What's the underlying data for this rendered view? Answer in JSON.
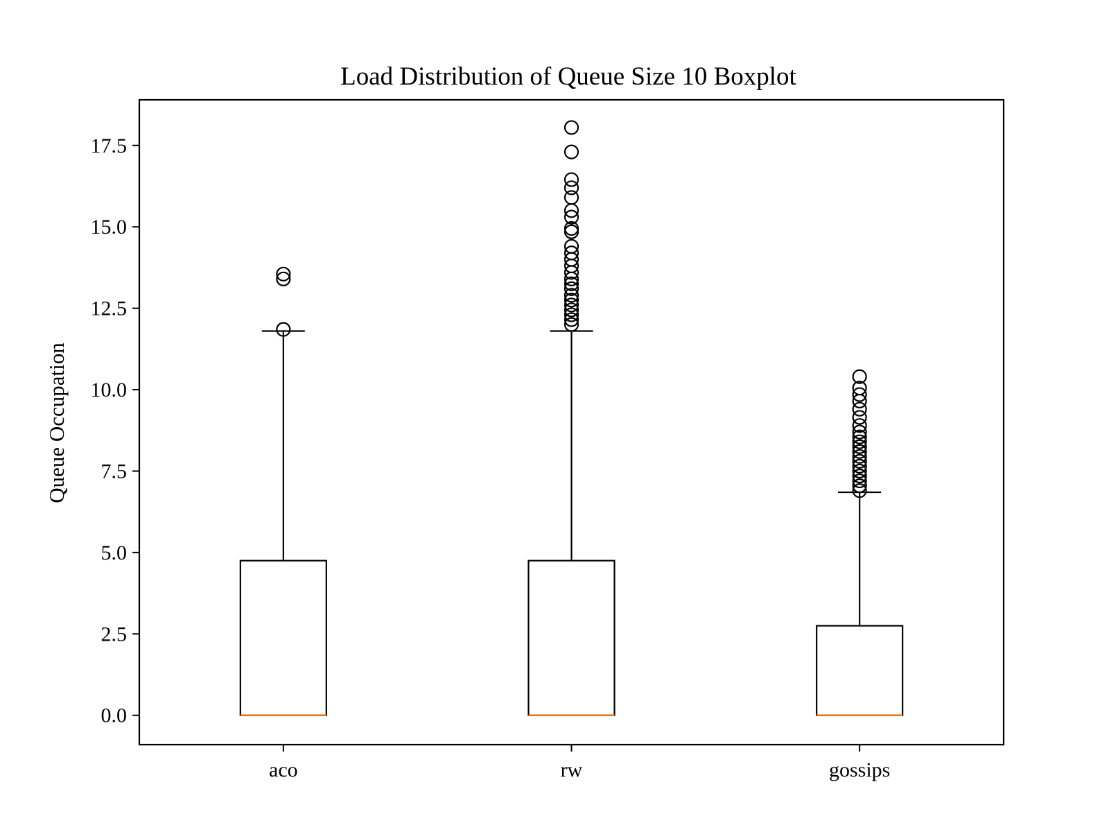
{
  "chart_data": {
    "type": "box",
    "title": "Load Distribution of Queue Size 10 Boxplot",
    "xlabel": "",
    "ylabel": "Queue Occupation",
    "ylim": [
      -0.9,
      18.9
    ],
    "yticks": [
      "0.0",
      "2.5",
      "5.0",
      "7.5",
      "10.0",
      "12.5",
      "15.0",
      "17.5"
    ],
    "grid": false,
    "colors": {
      "box": "#000000",
      "median": "#e07b1f",
      "background": "#ffffff"
    },
    "categories": [
      "aco",
      "rw",
      "gossips"
    ],
    "series": [
      {
        "category": "aco",
        "min": 0.0,
        "q1": 0.0,
        "median": 0.0,
        "q3": 4.75,
        "whisker_high": 11.8,
        "outliers": [
          11.85,
          13.4,
          13.55
        ]
      },
      {
        "category": "rw",
        "min": 0.0,
        "q1": 0.0,
        "median": 0.0,
        "q3": 4.75,
        "whisker_high": 11.8,
        "outliers": [
          12.0,
          12.15,
          12.3,
          12.45,
          12.6,
          12.75,
          12.9,
          13.1,
          13.25,
          13.4,
          13.6,
          13.8,
          14.0,
          14.2,
          14.4,
          14.85,
          14.95,
          15.3,
          15.5,
          15.9,
          16.2,
          16.45,
          17.3,
          18.05
        ]
      },
      {
        "category": "gossips",
        "min": 0.0,
        "q1": 0.0,
        "median": 0.0,
        "q3": 2.75,
        "whisker_high": 6.85,
        "outliers": [
          6.9,
          7.05,
          7.2,
          7.35,
          7.5,
          7.65,
          7.8,
          7.95,
          8.1,
          8.25,
          8.4,
          8.55,
          8.7,
          8.9,
          9.15,
          9.4,
          9.65,
          9.85,
          10.05,
          10.4
        ]
      }
    ]
  }
}
